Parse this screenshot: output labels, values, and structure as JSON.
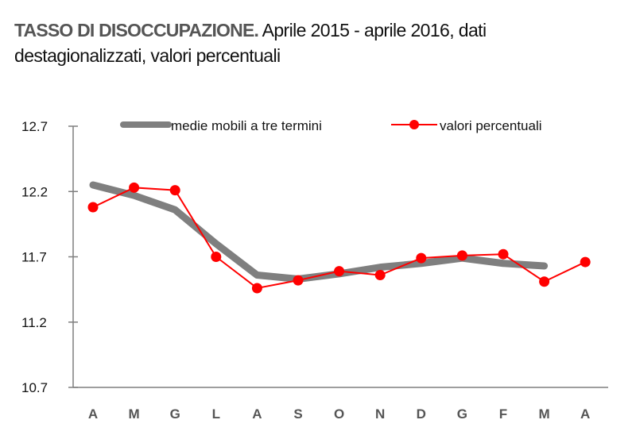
{
  "title": {
    "bold": "TASSO DI DISOCCUPAZIONE.",
    "rest": " Aprile 2015 - aprile 2016, dati destagionalizzati, valori percentuali"
  },
  "colors": {
    "moving_average": "#7f7f7f",
    "values": "#ff0000",
    "axis": "#7f7f7f"
  },
  "chart_data": {
    "type": "line",
    "title": "TASSO DI DISOCCUPAZIONE. Aprile 2015 - aprile 2016, dati destagionalizzati, valori percentuali",
    "xlabel": "",
    "ylabel": "",
    "ylim": [
      10.7,
      12.7
    ],
    "yticks": [
      "12.7",
      "12.2",
      "11.7",
      "11.2",
      "10.7"
    ],
    "grid": false,
    "legend_position": "top",
    "categories": [
      "A",
      "M",
      "G",
      "L",
      "A",
      "S",
      "O",
      "N",
      "D",
      "G",
      "F",
      "M",
      "A"
    ],
    "series": [
      {
        "name": "medie mobili a tre termini",
        "values": [
          12.25,
          12.17,
          12.06,
          11.8,
          11.56,
          11.53,
          11.57,
          11.62,
          11.65,
          11.69,
          11.65,
          11.63,
          null
        ]
      },
      {
        "name": "valori percentuali",
        "values": [
          12.08,
          12.23,
          12.21,
          11.7,
          11.46,
          11.52,
          11.59,
          11.56,
          11.69,
          11.71,
          11.72,
          11.51,
          11.66
        ]
      }
    ]
  }
}
